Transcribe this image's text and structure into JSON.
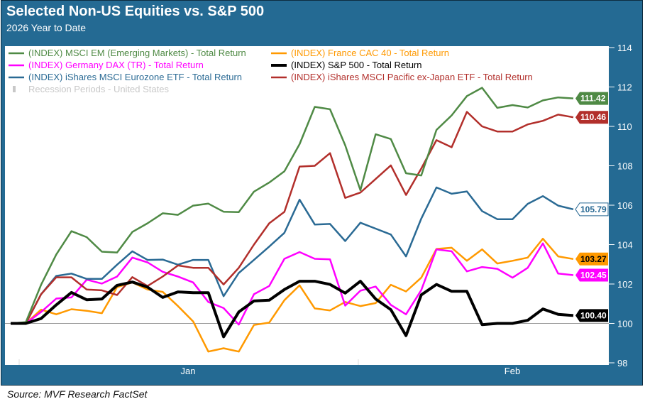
{
  "chart_data": {
    "type": "line",
    "title": "Selected Non-US Equities vs. S&P 500",
    "subtitle": "2026 Year to Date",
    "source": "Source: MVF Research FactSet",
    "xlabel": "",
    "ylabel": "",
    "x_tick_labels": [
      "Jan",
      "Feb"
    ],
    "y_ticks": [
      98,
      100,
      102,
      104,
      106,
      108,
      110,
      112,
      114
    ],
    "ylim": [
      98,
      114
    ],
    "y_axis_side": "right",
    "baseline": 100,
    "grid": false,
    "legend_position": "top-left",
    "recession_legend": {
      "label": "Recession Periods - United States",
      "color": "#c8c8c8"
    },
    "series": [
      {
        "name": "(INDEX) MSCI EM (Emerging Markets) - Total Return",
        "color": "#4f8a45",
        "end_label": "111.42",
        "values": [
          100,
          100.06,
          101.96,
          103.5,
          104.68,
          104.38,
          103.64,
          103.6,
          104.64,
          105.08,
          105.59,
          105.51,
          105.98,
          106.08,
          105.67,
          105.65,
          106.69,
          107.15,
          107.72,
          109.1,
          110.99,
          110.87,
          109.04,
          106.76,
          109.6,
          109.36,
          107.62,
          107.51,
          109.82,
          110.56,
          111.54,
          111.96,
          110.94,
          111.08,
          110.96,
          111.32,
          111.47,
          111.42
        ]
      },
      {
        "name": "(INDEX) France CAC 40 - Total Return",
        "color": "#ff9900",
        "end_label": "103.27",
        "values": [
          100,
          100,
          100.7,
          100.46,
          100.72,
          100.64,
          100.52,
          101.84,
          102.08,
          101.72,
          101.6,
          100.88,
          100.1,
          98.57,
          98.74,
          98.57,
          99.92,
          100.04,
          101.18,
          101.93,
          100.76,
          100.66,
          101.09,
          100.88,
          101.03,
          101.96,
          101.62,
          102.32,
          103.78,
          103.84,
          103.18,
          103.76,
          103.04,
          103.18,
          103.34,
          104.3,
          103.4,
          103.27
        ]
      },
      {
        "name": "(INDEX) Germany DAX (TR) - Total Return",
        "color": "#ff00ff",
        "end_label": "102.45",
        "values": [
          100,
          100,
          100.58,
          101.26,
          101.32,
          102.22,
          102.02,
          102.38,
          103.34,
          103.1,
          102.62,
          102.38,
          102.08,
          101.09,
          100.78,
          99.94,
          101.48,
          101.9,
          103.28,
          103.62,
          103.28,
          103.25,
          100.9,
          101.66,
          101.87,
          100.94,
          100.46,
          101.69,
          103.76,
          103.66,
          102.64,
          102.86,
          102.77,
          102.32,
          102.82,
          104.06,
          102.53,
          102.45
        ]
      },
      {
        "name": "(INDEX) S&P 500 - Total Return",
        "color": "#000000",
        "end_label": "100.40",
        "values": [
          100,
          100,
          100.25,
          100.94,
          101.57,
          101.2,
          101.24,
          101.93,
          102.1,
          101.84,
          101.32,
          101.6,
          101.56,
          101.56,
          99.32,
          100.58,
          101.14,
          101.18,
          101.72,
          102.14,
          102.14,
          101.98,
          101.54,
          102.14,
          101.24,
          100.7,
          99.38,
          101.45,
          101.98,
          101.63,
          101.63,
          99.94,
          100,
          100,
          100.16,
          100.73,
          100.46,
          100.4
        ]
      },
      {
        "name": "(INDEX) iShares MSCI Eurozone ETF - Total Return",
        "color": "#2a6a94",
        "end_label": "105.79",
        "values": [
          100,
          100,
          101.48,
          102.41,
          102.53,
          102.26,
          102.26,
          102.98,
          103.66,
          103.22,
          103.24,
          102.98,
          103.22,
          103.22,
          101.38,
          102.56,
          103.22,
          103.9,
          104.6,
          106.28,
          105.02,
          105.05,
          104.18,
          105.11,
          104.81,
          104.51,
          103.4,
          105.32,
          106.9,
          106.58,
          106.7,
          105.7,
          105.29,
          105.29,
          106.07,
          106.46,
          105.98,
          105.79
        ]
      },
      {
        "name": "(INDEX) iShares MSCI Pacific ex-Japan ETF - Total Return",
        "color": "#b22f2b",
        "end_label": "110.46",
        "values": [
          100,
          100,
          101.48,
          102.34,
          102.34,
          101.72,
          101.68,
          101.44,
          102.35,
          101.9,
          102.38,
          102.94,
          102.82,
          102.82,
          101.98,
          102.82,
          104,
          105.08,
          105.66,
          107.96,
          108,
          108.64,
          106.37,
          106.64,
          107.33,
          108.02,
          106.52,
          107.86,
          109.3,
          108.94,
          110.74,
          110,
          109.74,
          109.74,
          110.1,
          110.28,
          110.6,
          110.46
        ]
      }
    ]
  }
}
